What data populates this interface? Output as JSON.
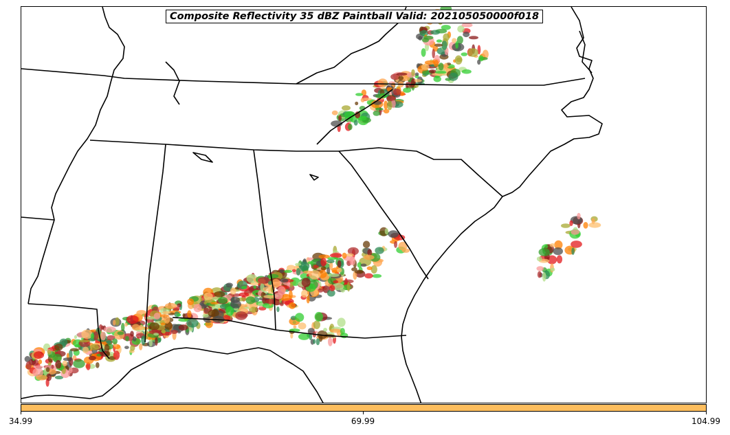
{
  "title": "Composite Reflectivity 35 dBZ Paintball Valid: 202105050000f018",
  "colorbar": {
    "color": "#fdbe5e",
    "ticks": [
      {
        "value": 34.99,
        "label": "34.99"
      },
      {
        "value": 69.99,
        "label": "69.99"
      },
      {
        "value": 104.99,
        "label": "104.99"
      }
    ],
    "range": [
      34.99,
      104.99
    ]
  },
  "member_colors": [
    "#e31a1c",
    "#ff7f00",
    "#fdbf6f",
    "#33a02c",
    "#b2df8a",
    "#fb9a99",
    "#6a3d0a",
    "#8b1a1a",
    "#a8a832",
    "#2e8b57",
    "#4d4d4d",
    "#ffa54f",
    "#32cd32",
    "#b03030"
  ],
  "boundary_color": "#000000"
}
